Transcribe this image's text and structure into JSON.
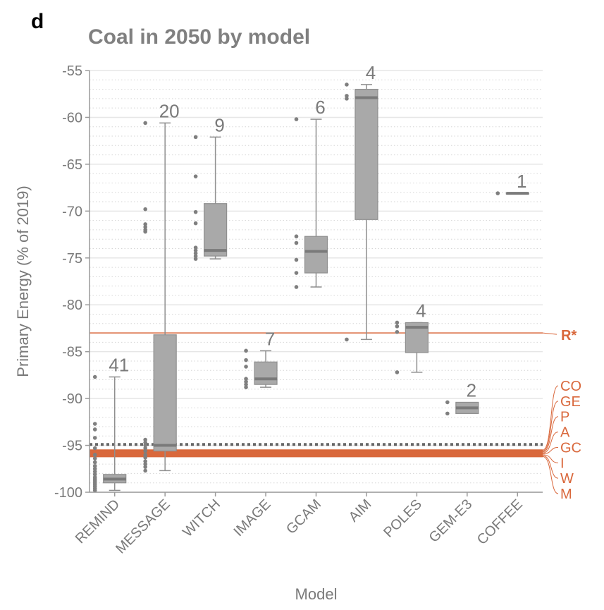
{
  "panel_letter": "d",
  "chart_data": {
    "type": "boxplot",
    "title": "Coal in 2050 by model",
    "xlabel": "Model",
    "ylabel": "Primary Energy (% of 2019)",
    "ylim": [
      -100,
      -55
    ],
    "yticks": [
      -55,
      -60,
      -65,
      -70,
      -75,
      -80,
      -85,
      -90,
      -95,
      -100
    ],
    "categories": [
      "REMIND",
      "MESSAGE",
      "WITCH",
      "IMAGE",
      "GCAM",
      "AIM",
      "POLES",
      "GEM-E3",
      "COFFEE"
    ],
    "boxes": [
      {
        "model": "REMIND",
        "n": "41",
        "min": -99.8,
        "q1": -99.0,
        "median": -98.6,
        "q3": -98.1,
        "max": -87.7,
        "outliers": [
          -87.7,
          -92.7,
          -93.3,
          -94.2,
          -95.3,
          -96.0,
          -96.4,
          -96.8,
          -97.2,
          -97.5,
          -97.8,
          -98.1,
          -98.4,
          -98.6,
          -98.8,
          -99.0,
          -99.2,
          -99.4,
          -99.6,
          -99.8
        ]
      },
      {
        "model": "MESSAGE",
        "n": "20",
        "min": -97.7,
        "q1": -95.6,
        "median": -95.0,
        "q3": -83.2,
        "max": -60.6,
        "outliers": [
          -60.6,
          -69.8,
          -71.4,
          -71.7,
          -72.0,
          -72.2,
          -94.4,
          -94.7,
          -95.0,
          -95.3,
          -95.6,
          -96.0,
          -96.3,
          -96.7,
          -97.0,
          -97.3,
          -97.7
        ]
      },
      {
        "model": "WITCH",
        "n": "9",
        "min": -75.1,
        "q1": -74.8,
        "median": -74.2,
        "q3": -69.2,
        "max": -62.1,
        "outliers": [
          -62.1,
          -66.3,
          -70.1,
          -71.3,
          -73.9,
          -74.2,
          -74.5,
          -74.8,
          -75.1
        ]
      },
      {
        "model": "IMAGE",
        "n": "7",
        "min": -88.8,
        "q1": -88.5,
        "median": -87.9,
        "q3": -86.1,
        "max": -84.9,
        "outliers": [
          -84.9,
          -85.9,
          -86.6,
          -87.9,
          -88.2,
          -88.5,
          -88.8
        ]
      },
      {
        "model": "GCAM",
        "n": "6",
        "min": -78.1,
        "q1": -76.6,
        "median": -74.3,
        "q3": -72.7,
        "max": -60.2,
        "outliers": [
          -60.2,
          -72.7,
          -73.4,
          -75.2,
          -76.6,
          -78.1
        ]
      },
      {
        "model": "AIM",
        "n": "4",
        "min": -83.7,
        "q1": -70.9,
        "median": -57.9,
        "q3": -57.0,
        "max": -56.5,
        "outliers": [
          -56.5,
          -57.7,
          -58.0,
          -83.7
        ]
      },
      {
        "model": "POLES",
        "n": "4",
        "min": -87.2,
        "q1": -85.1,
        "median": -82.4,
        "q3": -81.9,
        "max": -81.9,
        "outliers": [
          -81.9,
          -82.3,
          -82.9,
          -87.2
        ]
      },
      {
        "model": "GEM-E3",
        "n": "2",
        "min": -91.6,
        "q1": -91.6,
        "median": -91.0,
        "q3": -90.4,
        "max": -90.4,
        "outliers": [
          -90.4,
          -91.6
        ]
      },
      {
        "model": "COFFEE",
        "n": "1",
        "min": -68.1,
        "q1": -68.1,
        "median": -68.1,
        "q3": -68.1,
        "max": -68.1,
        "outliers": [
          -68.1
        ]
      }
    ],
    "reference_lines": [
      {
        "label": "R*",
        "value": -83.0,
        "bold": true
      },
      {
        "label": "CO",
        "value": -95.5
      },
      {
        "label": "GE",
        "value": -95.6
      },
      {
        "label": "P",
        "value": -95.7
      },
      {
        "label": "A",
        "value": -95.8
      },
      {
        "label": "GC",
        "value": -95.9
      },
      {
        "label": "I",
        "value": -96.0
      },
      {
        "label": "W",
        "value": -96.1
      },
      {
        "label": "M",
        "value": -96.2
      }
    ],
    "dotted_reference_value": -94.9,
    "grid": true,
    "colors": {
      "box_fill": "#a9a9a9",
      "box_stroke": "#8f8f8f",
      "median": "#7a7a7a",
      "point": "#7f7f7f",
      "reference": "#d9683c",
      "dotted_line": "#666666",
      "grid_major": "#e6e6e6",
      "grid_minor": "#d6d6d6",
      "axis": "#9a9a9a",
      "text": "#7a7a7a"
    }
  }
}
